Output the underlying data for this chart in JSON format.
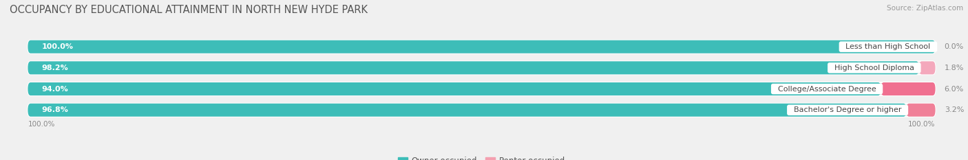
{
  "title": "OCCUPANCY BY EDUCATIONAL ATTAINMENT IN NORTH NEW HYDE PARK",
  "source": "Source: ZipAtlas.com",
  "categories": [
    "Less than High School",
    "High School Diploma",
    "College/Associate Degree",
    "Bachelor's Degree or higher"
  ],
  "owner_values": [
    100.0,
    98.2,
    94.0,
    96.8
  ],
  "renter_values": [
    0.0,
    1.8,
    6.0,
    3.2
  ],
  "owner_color": "#3DBDB8",
  "renter_color": "#F07090",
  "renter_color_light": "#F4A8BC",
  "background_color": "#f0f0f0",
  "bar_bg_color": "#e0e0e0",
  "bar_height": 0.62,
  "title_fontsize": 10.5,
  "label_fontsize": 8.0,
  "value_fontsize": 8.0,
  "legend_fontsize": 8.5,
  "source_fontsize": 7.5,
  "x_left_label": "100.0%",
  "x_right_label": "100.0%"
}
